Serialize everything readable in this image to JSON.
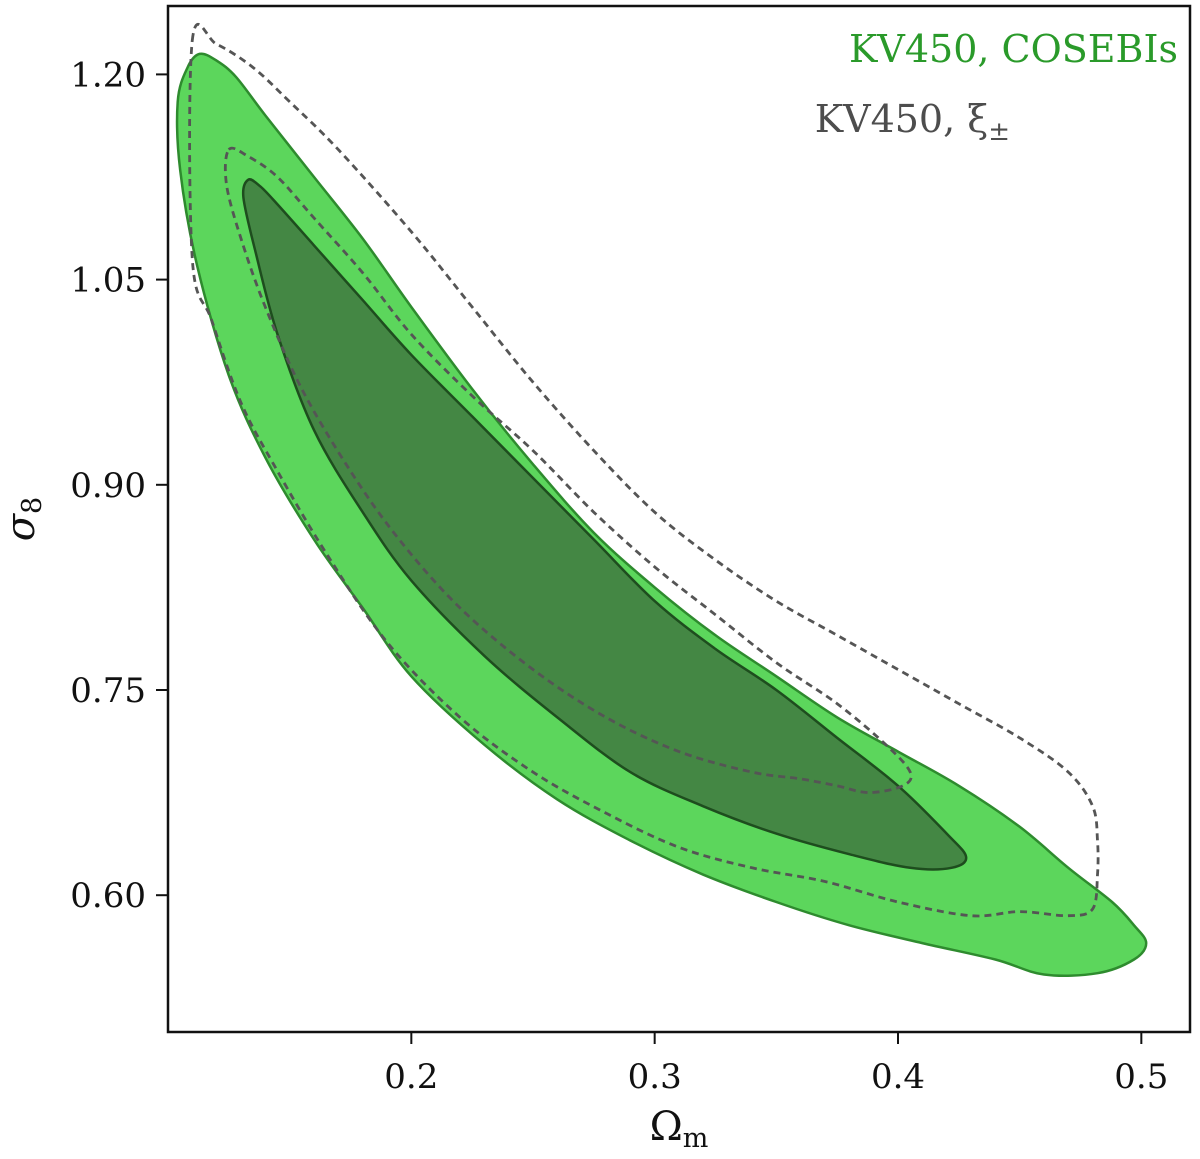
{
  "chart_data": {
    "type": "contour",
    "xlabel": {
      "base": "Ω",
      "sub": "m"
    },
    "ylabel": {
      "base": "σ",
      "sub": "8"
    },
    "xlim": [
      0.1,
      0.52
    ],
    "ylim": [
      0.5,
      1.25
    ],
    "xticks": [
      0.2,
      0.3,
      0.4,
      0.5
    ],
    "xtick_labels": [
      "0.2",
      "0.3",
      "0.4",
      "0.5"
    ],
    "yticks": [
      0.6,
      0.75,
      0.9,
      1.05,
      1.2
    ],
    "ytick_labels": [
      "0.60",
      "0.75",
      "0.90",
      "1.05",
      "1.20"
    ],
    "grid": false,
    "legend_placement": "top-right",
    "series": [
      {
        "name": "KV450, COSEBIs",
        "legend_label": "KV450, COSEBIs",
        "style": "filled",
        "colors": {
          "outer_fill": "#5cd65c",
          "inner_fill": "#448744",
          "outer_edge": "#2e8b2e",
          "inner_edge": "#1e4d1e",
          "text": "#2a9a2a"
        },
        "contours": [
          {
            "level": "95%",
            "points": [
              [
                0.113,
                1.215
              ],
              [
                0.12,
                1.21
              ],
              [
                0.128,
                1.198
              ],
              [
                0.14,
                1.17
              ],
              [
                0.16,
                1.125
              ],
              [
                0.18,
                1.08
              ],
              [
                0.2,
                1.03
              ],
              [
                0.225,
                0.97
              ],
              [
                0.25,
                0.915
              ],
              [
                0.275,
                0.865
              ],
              [
                0.3,
                0.825
              ],
              [
                0.325,
                0.79
              ],
              [
                0.35,
                0.76
              ],
              [
                0.375,
                0.73
              ],
              [
                0.4,
                0.705
              ],
              [
                0.425,
                0.68
              ],
              [
                0.45,
                0.65
              ],
              [
                0.47,
                0.62
              ],
              [
                0.488,
                0.595
              ],
              [
                0.497,
                0.578
              ],
              [
                0.502,
                0.565
              ],
              [
                0.497,
                0.553
              ],
              [
                0.482,
                0.543
              ],
              [
                0.46,
                0.542
              ],
              [
                0.44,
                0.553
              ],
              [
                0.41,
                0.565
              ],
              [
                0.38,
                0.578
              ],
              [
                0.35,
                0.595
              ],
              [
                0.32,
                0.615
              ],
              [
                0.29,
                0.64
              ],
              [
                0.26,
                0.67
              ],
              [
                0.23,
                0.71
              ],
              [
                0.2,
                0.76
              ],
              [
                0.18,
                0.81
              ],
              [
                0.16,
                0.86
              ],
              [
                0.14,
                0.92
              ],
              [
                0.125,
                0.98
              ],
              [
                0.112,
                1.06
              ],
              [
                0.105,
                1.13
              ],
              [
                0.104,
                1.18
              ],
              [
                0.108,
                1.205
              ]
            ]
          },
          {
            "level": "68%",
            "points": [
              [
                0.133,
                1.123
              ],
              [
                0.138,
                1.118
              ],
              [
                0.145,
                1.105
              ],
              [
                0.16,
                1.075
              ],
              [
                0.18,
                1.035
              ],
              [
                0.2,
                0.995
              ],
              [
                0.225,
                0.95
              ],
              [
                0.25,
                0.905
              ],
              [
                0.275,
                0.86
              ],
              [
                0.3,
                0.815
              ],
              [
                0.325,
                0.78
              ],
              [
                0.35,
                0.75
              ],
              [
                0.375,
                0.715
              ],
              [
                0.4,
                0.68
              ],
              [
                0.42,
                0.645
              ],
              [
                0.428,
                0.628
              ],
              [
                0.422,
                0.62
              ],
              [
                0.405,
                0.62
              ],
              [
                0.38,
                0.63
              ],
              [
                0.35,
                0.645
              ],
              [
                0.32,
                0.665
              ],
              [
                0.29,
                0.69
              ],
              [
                0.26,
                0.73
              ],
              [
                0.23,
                0.775
              ],
              [
                0.2,
                0.83
              ],
              [
                0.18,
                0.88
              ],
              [
                0.16,
                0.94
              ],
              [
                0.145,
                1.01
              ],
              [
                0.136,
                1.07
              ],
              [
                0.131,
                1.11
              ]
            ]
          }
        ]
      },
      {
        "name": "KV450, ξ±",
        "legend_base": "KV450, ξ",
        "legend_sub": "±",
        "style": "dashed",
        "colors": {
          "line": "#555555",
          "text": "#4d4d4d"
        },
        "contours": [
          {
            "level": "95% outer edge",
            "points": [
              [
                0.11,
                1.225
              ],
              [
                0.12,
                1.222
              ],
              [
                0.135,
                1.205
              ],
              [
                0.15,
                1.18
              ],
              [
                0.17,
                1.145
              ],
              [
                0.2,
                1.085
              ],
              [
                0.225,
                1.03
              ],
              [
                0.25,
                0.975
              ],
              [
                0.275,
                0.925
              ],
              [
                0.3,
                0.88
              ],
              [
                0.325,
                0.845
              ],
              [
                0.35,
                0.815
              ],
              [
                0.375,
                0.79
              ],
              [
                0.4,
                0.765
              ],
              [
                0.425,
                0.74
              ],
              [
                0.45,
                0.715
              ],
              [
                0.47,
                0.69
              ],
              [
                0.48,
                0.665
              ],
              [
                0.482,
                0.64
              ],
              [
                0.482,
                0.615
              ],
              [
                0.48,
                0.59
              ],
              [
                0.47,
                0.585
              ],
              [
                0.45,
                0.588
              ],
              [
                0.43,
                0.585
              ],
              [
                0.4,
                0.595
              ],
              [
                0.37,
                0.61
              ],
              [
                0.34,
                0.62
              ],
              [
                0.31,
                0.635
              ],
              [
                0.28,
                0.66
              ],
              [
                0.25,
                0.69
              ],
              [
                0.22,
                0.73
              ],
              [
                0.19,
                0.785
              ],
              [
                0.165,
                0.85
              ],
              [
                0.145,
                0.91
              ],
              [
                0.13,
                0.96
              ],
              [
                0.118,
                1.02
              ],
              [
                0.11,
                1.065
              ]
            ]
          },
          {
            "level": "68%",
            "points": [
              [
                0.125,
                1.145
              ],
              [
                0.133,
                1.14
              ],
              [
                0.145,
                1.125
              ],
              [
                0.16,
                1.095
              ],
              [
                0.18,
                1.055
              ],
              [
                0.2,
                1.01
              ],
              [
                0.225,
                0.965
              ],
              [
                0.25,
                0.925
              ],
              [
                0.275,
                0.88
              ],
              [
                0.3,
                0.84
              ],
              [
                0.325,
                0.805
              ],
              [
                0.35,
                0.77
              ],
              [
                0.375,
                0.74
              ],
              [
                0.395,
                0.71
              ],
              [
                0.405,
                0.69
              ],
              [
                0.402,
                0.68
              ],
              [
                0.388,
                0.675
              ],
              [
                0.375,
                0.68
              ],
              [
                0.36,
                0.685
              ],
              [
                0.34,
                0.69
              ],
              [
                0.31,
                0.705
              ],
              [
                0.28,
                0.73
              ],
              [
                0.25,
                0.765
              ],
              [
                0.22,
                0.81
              ],
              [
                0.195,
                0.86
              ],
              [
                0.175,
                0.91
              ],
              [
                0.155,
                0.97
              ],
              [
                0.14,
                1.03
              ],
              [
                0.13,
                1.08
              ],
              [
                0.124,
                1.12
              ]
            ]
          }
        ]
      }
    ]
  }
}
